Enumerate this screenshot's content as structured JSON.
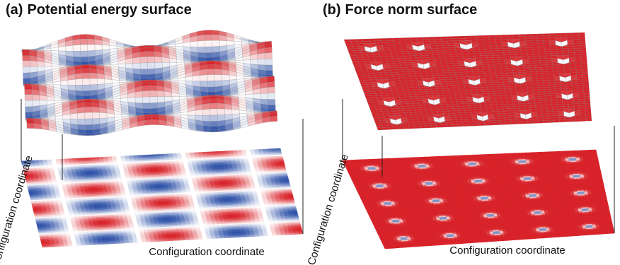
{
  "panels": [
    {
      "tag": "(a)",
      "title": "Potential energy surface",
      "x_axis_label": "Configuration coordinate",
      "y_axis_label": "Configuration coordinate",
      "colormap": {
        "low": "#2f52a8",
        "mid": "#ffffff",
        "high": "#d8232a"
      }
    },
    {
      "tag": "(b)",
      "title": "Force norm surface",
      "x_axis_label": "Configuration coordinate",
      "y_axis_label": "Configuration coordinate",
      "colormap": {
        "low": "#2f52a8",
        "mid": "#ffffff",
        "high": "#d8232a"
      }
    }
  ]
}
